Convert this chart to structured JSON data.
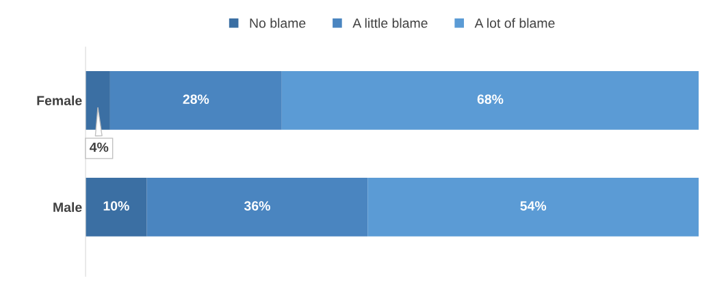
{
  "chart_data": {
    "type": "bar",
    "orientation": "horizontal",
    "stacked": true,
    "categories": [
      "Female",
      "Male"
    ],
    "series": [
      {
        "name": "No blame",
        "color": "#3b6fa3",
        "values": [
          4,
          10
        ],
        "value_labels": [
          "4%",
          "10%"
        ]
      },
      {
        "name": "A little blame",
        "color": "#4a85c0",
        "values": [
          28,
          36
        ],
        "value_labels": [
          "28%",
          "36%"
        ]
      },
      {
        "name": "A lot of blame",
        "color": "#5b9bd5",
        "values": [
          68,
          54
        ],
        "value_labels": [
          "68%",
          "54%"
        ]
      }
    ],
    "legend": "top",
    "tick_labels": "y",
    "grid": false
  }
}
